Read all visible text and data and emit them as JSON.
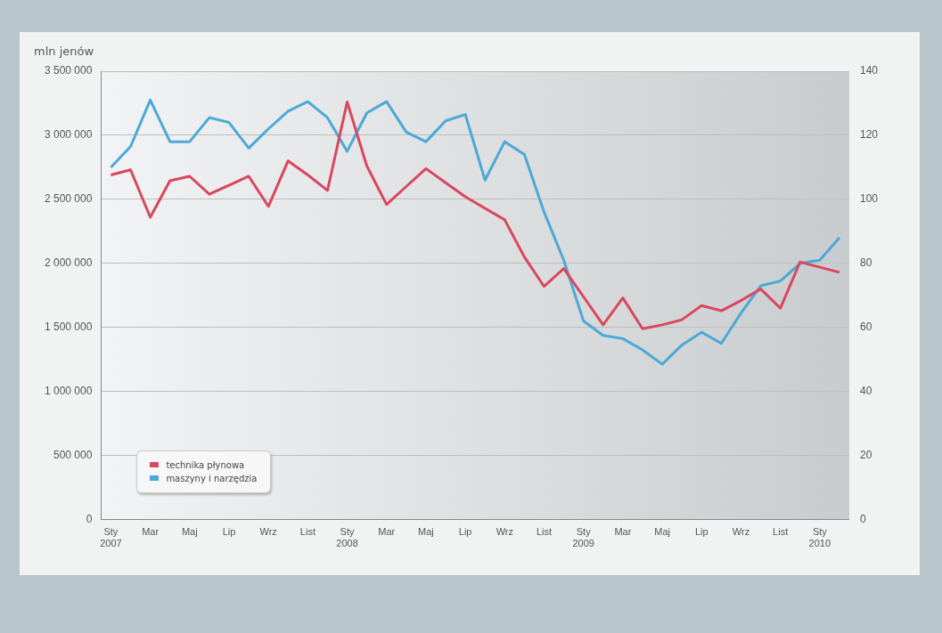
{
  "chart_data": {
    "type": "line",
    "ylabel": "mln jenów",
    "categories": [
      "Sty\n2007",
      null,
      "Mar",
      null,
      "Maj",
      null,
      "Lip",
      null,
      "Wrz",
      null,
      "List",
      null,
      "Sty\n2008",
      null,
      "Mar",
      null,
      "Maj",
      null,
      "Lip",
      null,
      "Wrz",
      null,
      "List",
      null,
      "Sty\n2009",
      null,
      "Mar",
      null,
      "Maj",
      null,
      "Lip",
      null,
      "Wrz",
      null,
      "List",
      null,
      "Sty\n2010",
      null
    ],
    "series": [
      {
        "name": "technika płynowa",
        "color": "#d9475f",
        "values": [
          2690000,
          2730000,
          2360000,
          2645000,
          2680000,
          2540000,
          2610000,
          2680000,
          2445000,
          2800000,
          2690000,
          2570000,
          3260000,
          2760000,
          2460000,
          2600000,
          2740000,
          2630000,
          2520000,
          2430000,
          2340000,
          2050000,
          1820000,
          1960000,
          1740000,
          1520000,
          1730000,
          1490000,
          1520000,
          1560000,
          1670000,
          1630000,
          1710000,
          1800000,
          1650000,
          2010000,
          1970000,
          1930000
        ]
      },
      {
        "name": "maszyny i narzędzia",
        "color": "#4aa9d6",
        "axis": "y2",
        "values": [
          110,
          116.5,
          131,
          118,
          118,
          125.5,
          124,
          116,
          122,
          127.5,
          130.5,
          125.5,
          115,
          127,
          130.5,
          121,
          118,
          124.5,
          126.5,
          106,
          118,
          114,
          96,
          81,
          62,
          57.5,
          56.5,
          53,
          48.5,
          54.5,
          58.5,
          55,
          64.5,
          73,
          74.5,
          80,
          81,
          88
        ]
      }
    ],
    "ylim": [
      0,
      3500000
    ],
    "yticks": [
      {
        "value": 0,
        "label": "0"
      },
      {
        "value": 500000,
        "label": "500 000"
      },
      {
        "value": 1000000,
        "label": "1 000 000"
      },
      {
        "value": 1500000,
        "label": "1 500 000"
      },
      {
        "value": 2000000,
        "label": "2 000 000"
      },
      {
        "value": 2500000,
        "label": "2 500 000"
      },
      {
        "value": 3000000,
        "label": "3 000 000"
      },
      {
        "value": 3500000,
        "label": "3 500 000"
      }
    ],
    "y2lim": [
      0,
      140
    ],
    "y2ticks": [
      0,
      20,
      40,
      60,
      80,
      100,
      120,
      140
    ],
    "grid": "y",
    "legend": "bottom left",
    "marker": "none",
    "line_style": "solid"
  }
}
